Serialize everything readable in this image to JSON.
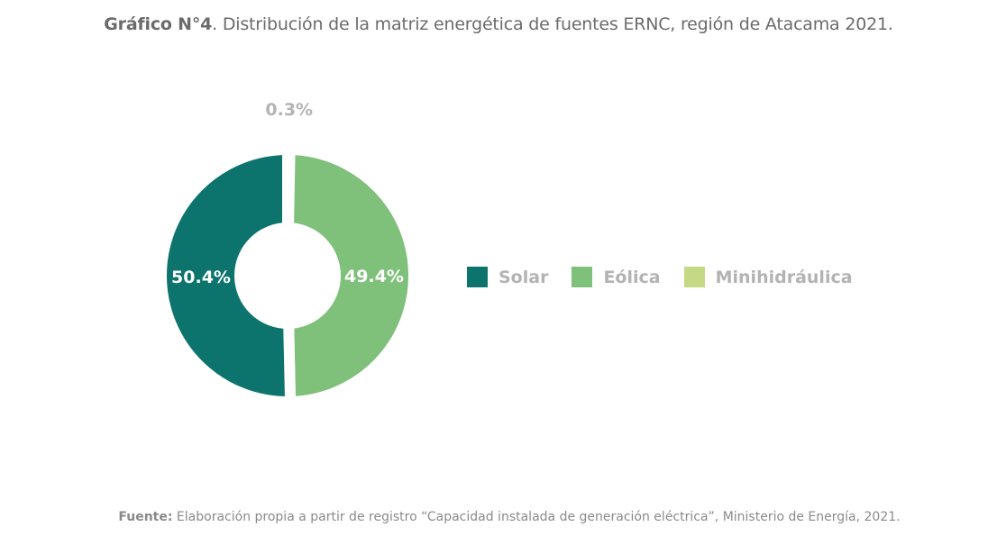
{
  "title": {
    "bold": "Gráfico N°4",
    "rest": ". Distribución de la matriz energética de fuentes ERNC, región de Atacama 2021."
  },
  "source": {
    "bold": "Fuente:",
    "rest": " Elaboración propia a partir de registro “Capacidad instalada de generación eléctrica”, Ministerio de Energía, 2021."
  },
  "chart_data": {
    "type": "pie",
    "variant": "donut",
    "title": "Distribución de la matriz energética de fuentes ERNC, región de Atacama 2021",
    "categories": [
      "Minihidráulica",
      "Eólica",
      "Solar"
    ],
    "values": [
      0.3,
      49.4,
      50.4
    ],
    "labels": [
      "0.3%",
      "49.4%",
      "50.4%"
    ],
    "colors": [
      "#c5d985",
      "#7fc07b",
      "#0d746d"
    ],
    "legend_position": "right",
    "legend": [
      {
        "label": "Solar",
        "color": "#0d746d"
      },
      {
        "label": "Eólica",
        "color": "#7fc07b"
      },
      {
        "label": "Minihidráulica",
        "color": "#c5d985"
      }
    ]
  }
}
